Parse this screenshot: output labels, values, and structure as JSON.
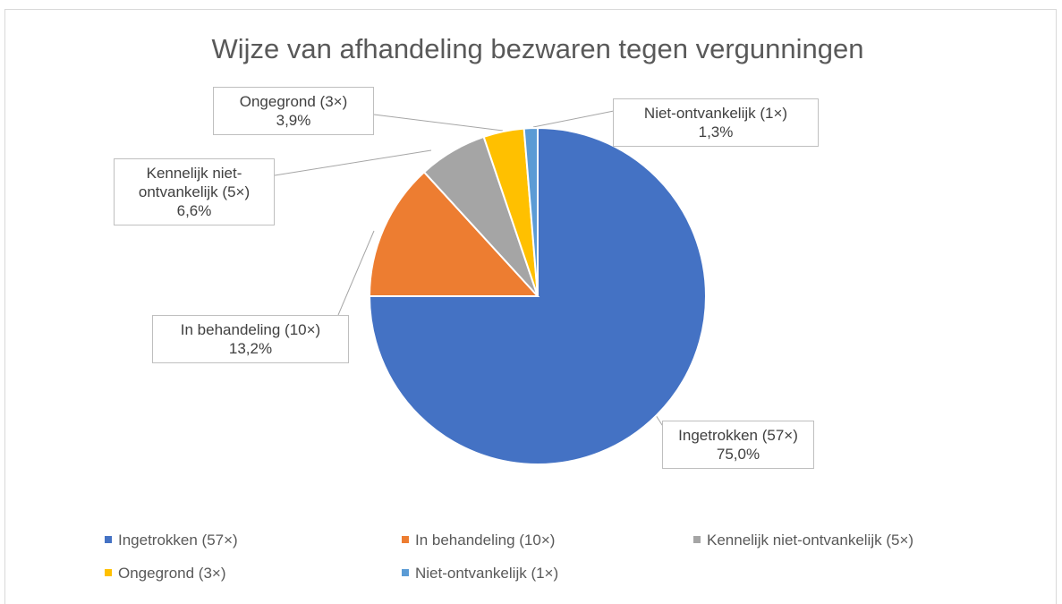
{
  "chart_data": {
    "type": "pie",
    "title": "Wijze van afhandeling bezwaren tegen vergunningen",
    "categories": [
      "Ingetrokken (57×)",
      "In behandeling (10×)",
      "Kennelijk niet-ontvankelijk (5×)",
      "Ongegrond (3×)",
      "Niet-ontvankelijk (1×)"
    ],
    "values": [
      75.0,
      13.2,
      6.6,
      3.9,
      1.3
    ],
    "value_labels": [
      "75,0%",
      "13,2%",
      "6,6%",
      "3,9%",
      "1,3%"
    ],
    "colors": [
      "#4472c4",
      "#ed7d31",
      "#a5a5a5",
      "#ffc000",
      "#5b9bd5"
    ],
    "legend": "bottom"
  }
}
